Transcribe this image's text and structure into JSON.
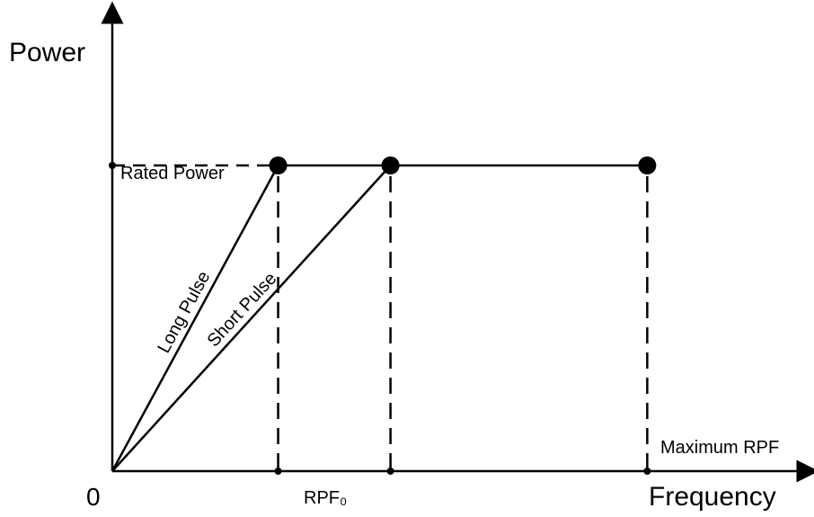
{
  "chart_data": {
    "type": "line",
    "ylabel": "Power",
    "xlabel": "Frequency",
    "origin_label": "0",
    "y_reference_label": "Rated Power",
    "x_annotation_label": "RPF₀",
    "x_max_label": "Maximum RPF",
    "series": [
      {
        "name": "Long Pulse",
        "points": [
          [
            0,
            0
          ],
          [
            0.31,
            1
          ]
        ]
      },
      {
        "name": "Short Pulse",
        "points": [
          [
            0,
            0
          ],
          [
            0.52,
            1
          ]
        ]
      },
      {
        "name": "",
        "points": [
          [
            0.31,
            1
          ],
          [
            1,
            1
          ]
        ]
      }
    ],
    "markers": [
      [
        0.31,
        1
      ],
      [
        0.52,
        1
      ],
      [
        1,
        1
      ]
    ],
    "vertical_dashed_at_x": [
      0.31,
      0.52,
      1
    ],
    "horizontal_dashed_at_y": 1,
    "xlim": [
      0,
      1.3
    ],
    "ylim": [
      0,
      1.5
    ],
    "grid": false
  }
}
